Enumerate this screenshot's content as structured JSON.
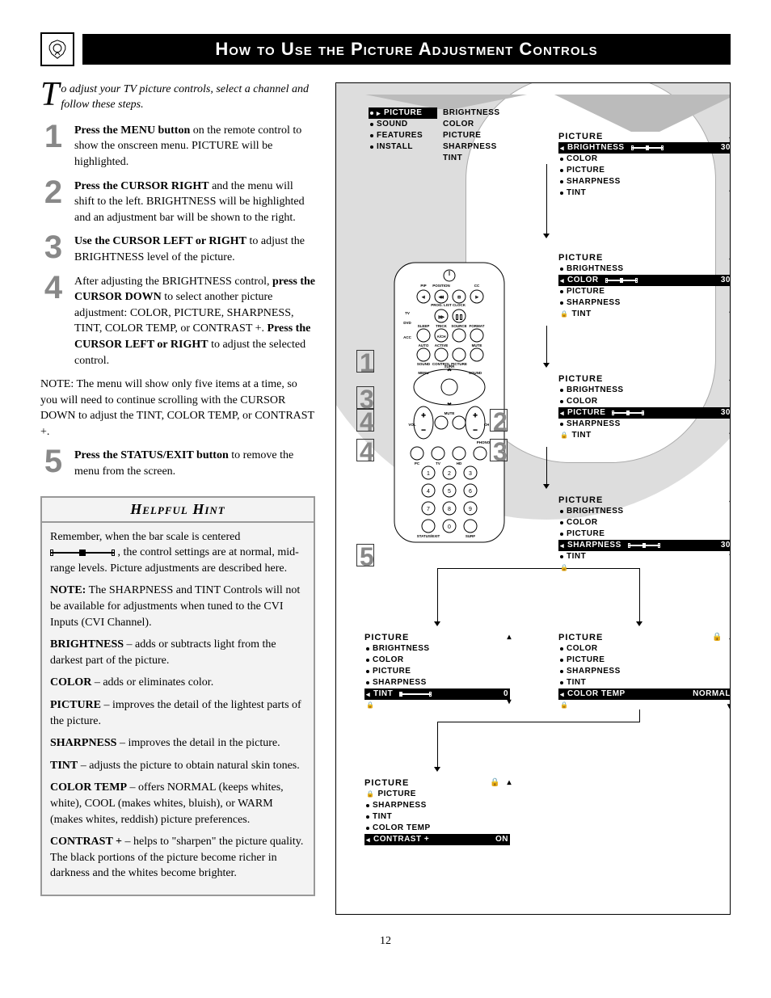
{
  "header": {
    "title": "How to Use the Picture Adjustment Controls"
  },
  "intro": {
    "drop": "T",
    "text": "o adjust your TV picture controls, select a channel and follow these steps."
  },
  "steps": [
    {
      "num": "1",
      "html": "<b>Press the MENU button</b> on the remote control to show the onscreen menu. PICTURE will be highlighted."
    },
    {
      "num": "2",
      "html": "<b>Press the CURSOR RIGHT</b> and the menu will shift to the left. BRIGHTNESS will be highlighted and an adjustment bar will be shown to the right."
    },
    {
      "num": "3",
      "html": "<b>Use the CURSOR LEFT or RIGHT</b> to adjust the BRIGHTNESS level of the picture."
    },
    {
      "num": "4",
      "html": "After adjusting the BRIGHTNESS control, <b>press the CURSOR DOWN</b> to select another picture adjustment: COLOR, PICTURE, SHARPNESS, TINT, COLOR TEMP, or CONTRAST +. <b>Press the CURSOR LEFT or RIGHT</b> to adjust the selected control."
    }
  ],
  "note": "NOTE:  The menu will show only five items at a time, so you will need to continue scrolling with the CURSOR DOWN to adjust the TINT, COLOR TEMP, or CONTRAST +.",
  "step5": {
    "num": "5",
    "html": "<b>Press the STATUS/EXIT button</b> to remove the menu from the screen."
  },
  "hint": {
    "title": "Helpful Hint",
    "p1a": "Remember, when the bar scale is centered ",
    "p1b": " , the control settings are at normal, mid-range levels. Picture adjustments are described here.",
    "p2": "NOTE: The SHARPNESS and TINT Controls will not be available for adjustments when tuned to the CVI Inputs (CVI Channel).",
    "items": [
      {
        "term": "BRIGHTNESS",
        "desc": " – adds or subtracts light from the darkest part of the picture."
      },
      {
        "term": "COLOR",
        "desc": " – adds or eliminates color."
      },
      {
        "term": "PICTURE",
        "desc": " – improves the detail of the lightest parts of the picture."
      },
      {
        "term": "SHARPNESS",
        "desc": " – improves the detail in the picture."
      },
      {
        "term": "TINT",
        "desc": " – adjusts the picture to obtain natural skin tones."
      },
      {
        "term": "COLOR TEMP",
        "desc": " – offers NORMAL (keeps whites, white), COOL (makes whites, bluish), or WARM (makes whites, reddish) picture preferences."
      },
      {
        "term": "CONTRAST +",
        "desc": " – helps to \"sharpen\" the picture quality. The black portions of the picture become richer in darkness and the whites become brighter."
      }
    ]
  },
  "menus": {
    "main1_hdr": "PICTURE",
    "main1": [
      "PICTURE",
      "SOUND",
      "FEATURES",
      "INSTALL"
    ],
    "sub1": [
      "BRIGHTNESS",
      "COLOR",
      "PICTURE",
      "SHARPNESS",
      "TINT"
    ],
    "val30": "30",
    "val0": "0",
    "valNormal": "NORMAL",
    "valOn": "ON",
    "pic_hdr": "PICTURE",
    "p_brightness": "BRIGHTNESS",
    "p_color": "COLOR",
    "p_picture": "PICTURE",
    "p_sharpness": "SHARPNESS",
    "p_tint": "TINT",
    "p_colortemp": "COLOR TEMP",
    "p_contrast": "CONTRAST  +"
  },
  "remote_labels": {
    "pip": "PIP",
    "position": "POSITION",
    "cc": "CC",
    "proglist": "PROG. LIST",
    "clock": "CLOCK",
    "tv": "TV",
    "dvd": "DVD",
    "acc": "ACC",
    "sleep": "SLEEP",
    "trick": "TRICK",
    "source": "SOURCE",
    "format": "FORMAT",
    "ash": "A/CH",
    "auto": "AUTO",
    "sound": "SOUND",
    "active": "ACTIVE",
    "control": "CONTROL",
    "picture": "PICTURE",
    "mute": "MUTE",
    "menu": "MENU",
    "surr": "SURR",
    "vol": "VOL",
    "ch": "CH",
    "mute2": "MUTE",
    "phono": "PHONO",
    "pc": "PC",
    "tv2": "TV",
    "hd": "HD",
    "statusexit": "STATUS/EXIT",
    "surf": "SURF"
  },
  "callouts": {
    "c1": "1",
    "c2": "2",
    "c3": "3",
    "c4": "4",
    "c5": "5"
  },
  "page": "12"
}
